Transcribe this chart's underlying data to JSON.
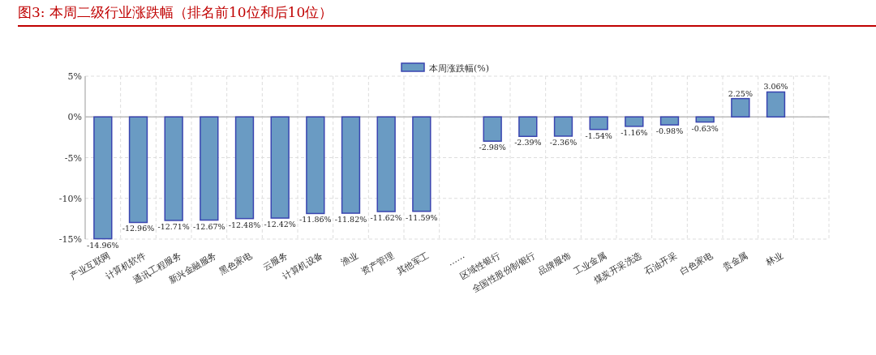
{
  "chart_data": {
    "type": "bar",
    "title": "图3:   本周二级行业涨跌幅（排名前10位和后10位）",
    "categories": [
      "产业互联网",
      "计算机软件",
      "通讯工程服务",
      "新兴金融服务",
      "黑色家电",
      "云服务",
      "计算机设备",
      "渔业",
      "资产管理",
      "其他军工",
      "……",
      "区域性银行",
      "全国性股份制银行",
      "品牌服饰",
      "工业金属",
      "煤炭开采洗选",
      "石油开采",
      "白色家电",
      "贵金属",
      "林业",
      null
    ],
    "series": [
      {
        "name": "本周涨跌幅(%)",
        "color": "#6a9bc3",
        "values": [
          -14.96,
          -12.96,
          -12.71,
          -12.67,
          -12.48,
          -12.42,
          -11.86,
          -11.82,
          -11.62,
          -11.59,
          null,
          -2.98,
          -2.39,
          -2.36,
          -1.54,
          -1.16,
          -0.98,
          -0.63,
          2.25,
          3.06,
          null
        ],
        "value_labels": [
          "-14.96%",
          "-12.96%",
          "-12.71%",
          "-12.67%",
          "-12.48%",
          "-12.42%",
          "-11.86%",
          "-11.82%",
          "-11.62%",
          "-11.59%",
          null,
          "-2.98%",
          "-2.39%",
          "-2.36%",
          "-1.54%",
          "-1.16%",
          "-0.98%",
          "-0.63%",
          "2.25%",
          "3.06%",
          null
        ]
      }
    ],
    "ylim": [
      -15,
      5
    ],
    "yticks": [
      {
        "value": 5,
        "label": "5%"
      },
      {
        "value": 0,
        "label": "0%"
      },
      {
        "value": -5,
        "label": "-5%"
      },
      {
        "value": -10,
        "label": "-10%"
      },
      {
        "value": -15,
        "label": "-15%"
      }
    ],
    "grid": true,
    "legend": "top"
  }
}
